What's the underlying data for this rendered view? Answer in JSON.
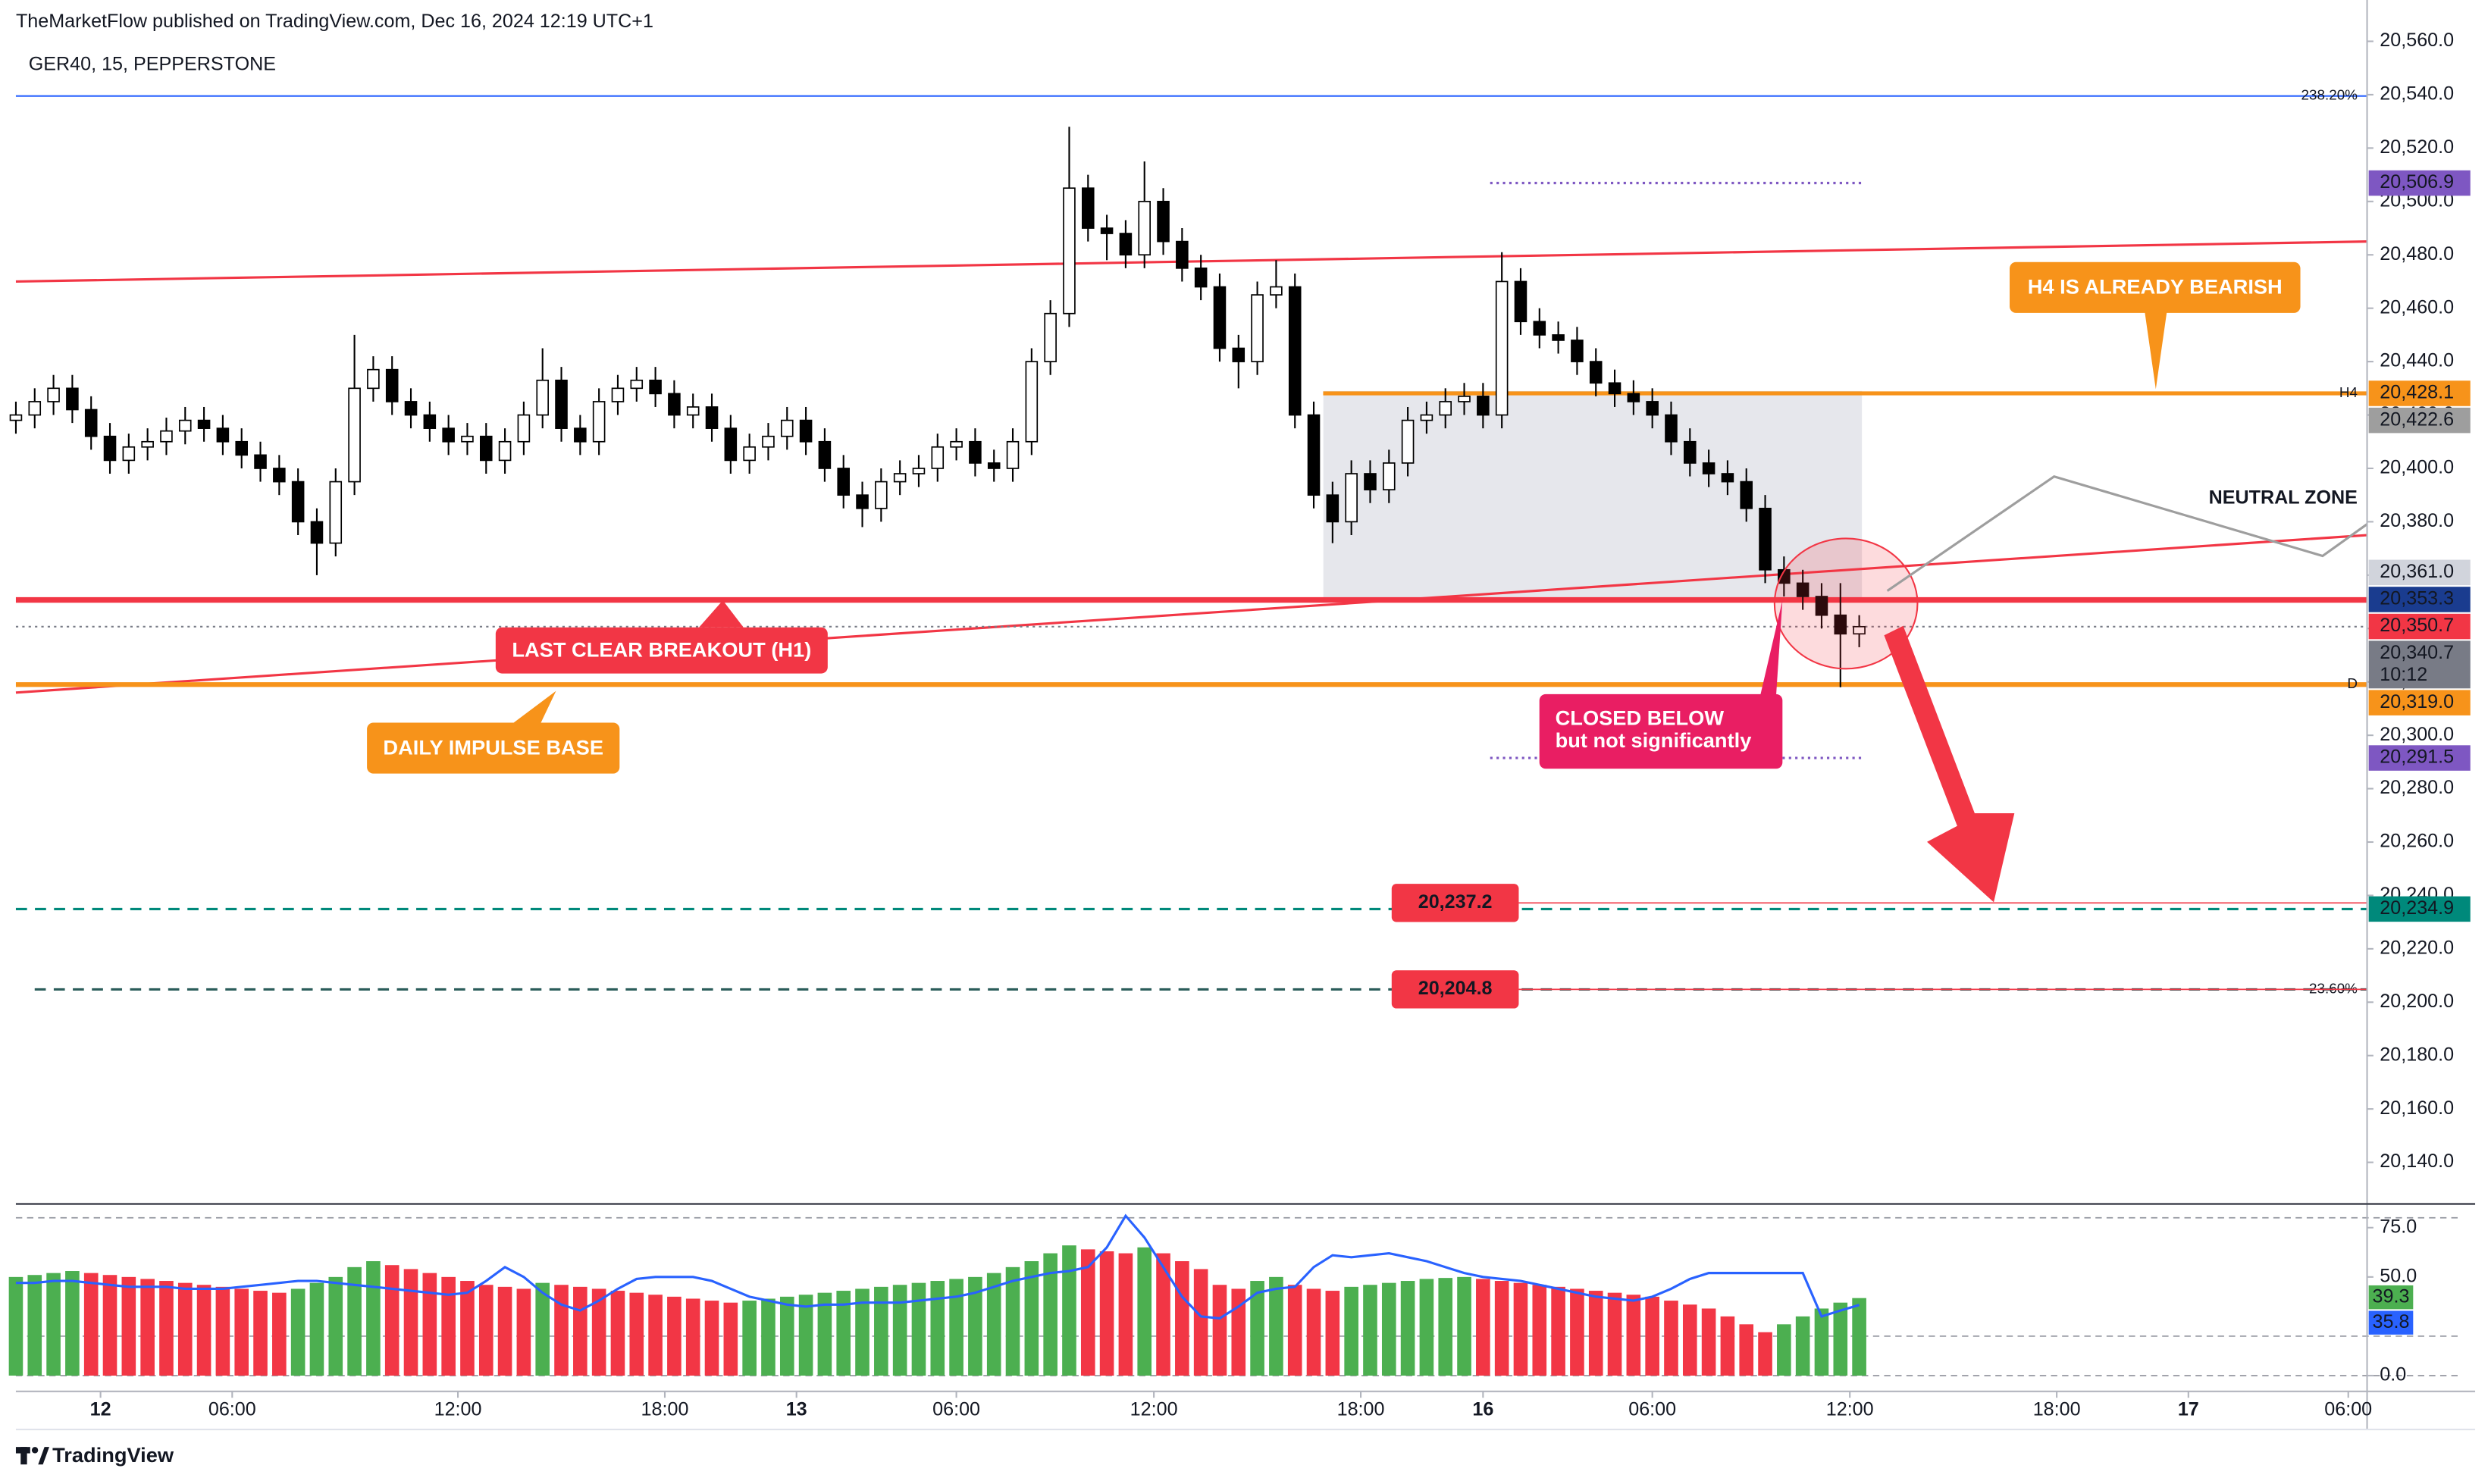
{
  "chart_data": {
    "type": "candlestick",
    "byline": "TheMarketFlow published on TradingView.com, Dec 16, 2024 12:19 UTC+1",
    "title": "GER40, 15, PEPPERSTONE",
    "brand": "TradingView",
    "up_color": "#ffffff",
    "down_color": "#000000",
    "xlim": [
      0,
      250
    ],
    "xticks": [
      {
        "value": 9,
        "label": "12"
      },
      {
        "value": 23,
        "label": "06:00"
      },
      {
        "value": 47,
        "label": "12:00"
      },
      {
        "value": 69,
        "label": "18:00"
      },
      {
        "value": 83,
        "label": "13"
      },
      {
        "value": 100,
        "label": "06:00"
      },
      {
        "value": 121,
        "label": "12:00"
      },
      {
        "value": 143,
        "label": "18:00"
      },
      {
        "value": 156,
        "label": "16"
      },
      {
        "value": 174,
        "label": "06:00"
      },
      {
        "value": 195,
        "label": "12:00"
      },
      {
        "value": 217,
        "label": "18:00"
      },
      {
        "value": 231,
        "label": "17"
      },
      {
        "value": 248,
        "label": "06:00"
      }
    ],
    "ylim": [
      20125,
      20560
    ],
    "yticks": [
      {
        "value": 20140,
        "label": "20,140.0"
      },
      {
        "value": 20160,
        "label": "20,160.0"
      },
      {
        "value": 20180,
        "label": "20,180.0"
      },
      {
        "value": 20200,
        "label": "20,200.0"
      },
      {
        "value": 20220,
        "label": "20,220.0"
      },
      {
        "value": 20240,
        "label": "20,240.0"
      },
      {
        "value": 20260,
        "label": "20,260.0"
      },
      {
        "value": 20280,
        "label": "20,280.0"
      },
      {
        "value": 20300,
        "label": "20,300.0"
      },
      {
        "value": 20320,
        "label": "20,320.0"
      },
      {
        "value": 20340,
        "label": "20,340.0"
      },
      {
        "value": 20360,
        "label": "20,360.0"
      },
      {
        "value": 20380,
        "label": "20,380.0"
      },
      {
        "value": 20400,
        "label": "20,400.0"
      },
      {
        "value": 20420,
        "label": "20,420.0"
      },
      {
        "value": 20440,
        "label": "20,440.0"
      },
      {
        "value": 20460,
        "label": "20,460.0"
      },
      {
        "value": 20480,
        "label": "20,480.0"
      },
      {
        "value": 20500,
        "label": "20,500.0"
      },
      {
        "value": 20520,
        "label": "20,520.0"
      },
      {
        "value": 20540,
        "label": "20,540.0"
      },
      {
        "value": 20560,
        "label": "20,560.0"
      }
    ],
    "x": [
      0,
      2,
      4,
      6,
      8,
      10,
      12,
      14,
      16,
      18,
      20,
      22,
      24,
      26,
      28,
      30,
      32,
      34,
      36,
      38,
      40,
      42,
      44,
      46,
      48,
      50,
      52,
      54,
      56,
      58,
      60,
      62,
      64,
      66,
      68,
      70,
      72,
      74,
      76,
      78,
      80,
      82,
      84,
      86,
      88,
      90,
      92,
      94,
      96,
      98,
      100,
      102,
      104,
      106,
      108,
      110,
      112,
      114,
      116,
      118,
      120,
      122,
      124,
      126,
      128,
      130,
      132,
      134,
      136,
      138,
      140,
      142,
      144,
      146,
      148,
      150,
      152,
      154,
      156,
      158,
      160,
      162,
      164,
      166,
      168,
      170,
      172,
      174,
      176,
      178,
      180,
      182,
      184,
      186,
      188,
      190,
      192,
      194,
      196
    ],
    "open": [
      20418,
      20420,
      20425,
      20430,
      20422,
      20412,
      20403,
      20408,
      20410,
      20414,
      20418,
      20415,
      20410,
      20405,
      20400,
      20395,
      20380,
      20372,
      20395,
      20430,
      20437,
      20425,
      20420,
      20415,
      20410,
      20412,
      20403,
      20410,
      20420,
      20433,
      20415,
      20410,
      20425,
      20430,
      20433,
      20428,
      20420,
      20423,
      20415,
      20403,
      20408,
      20412,
      20418,
      20410,
      20400,
      20390,
      20385,
      20395,
      20398,
      20400,
      20408,
      20410,
      20402,
      20400,
      20410,
      20440,
      20458,
      20505,
      20490,
      20488,
      20480,
      20500,
      20485,
      20475,
      20468,
      20445,
      20440,
      20465,
      20468,
      20420,
      20390,
      20380,
      20398,
      20392,
      20402,
      20418,
      20420,
      20425,
      20427,
      20420,
      20470,
      20455,
      20450,
      20448,
      20440,
      20432,
      20428,
      20425,
      20420,
      20410,
      20402,
      20398,
      20395,
      20385,
      20362,
      20357,
      20352,
      20345,
      20338
    ],
    "high": [
      20425,
      20430,
      20435,
      20435,
      20427,
      20417,
      20413,
      20415,
      20419,
      20423,
      20423,
      20420,
      20415,
      20410,
      20405,
      20400,
      20385,
      20400,
      20450,
      20442,
      20442,
      20430,
      20425,
      20420,
      20417,
      20417,
      20415,
      20425,
      20445,
      20438,
      20420,
      20430,
      20435,
      20438,
      20438,
      20433,
      20428,
      20428,
      20420,
      20413,
      20417,
      20423,
      20423,
      20415,
      20405,
      20395,
      20400,
      20403,
      20405,
      20413,
      20415,
      20415,
      20407,
      20415,
      20445,
      20463,
      20528,
      20510,
      20495,
      20493,
      20515,
      20505,
      20490,
      20480,
      20473,
      20450,
      20470,
      20478,
      20473,
      20425,
      20395,
      20403,
      20403,
      20407,
      20423,
      20425,
      20430,
      20432,
      20432,
      20481,
      20475,
      20460,
      20455,
      20453,
      20445,
      20437,
      20433,
      20430,
      20425,
      20415,
      20407,
      20403,
      20400,
      20390,
      20367,
      20362,
      20357,
      20357,
      20345
    ],
    "low": [
      20413,
      20415,
      20420,
      20417,
      20407,
      20398,
      20398,
      20403,
      20405,
      20409,
      20410,
      20405,
      20400,
      20395,
      20390,
      20375,
      20360,
      20367,
      20390,
      20425,
      20420,
      20415,
      20410,
      20405,
      20405,
      20398,
      20398,
      20405,
      20415,
      20410,
      20405,
      20405,
      20420,
      20425,
      20423,
      20415,
      20415,
      20410,
      20398,
      20398,
      20403,
      20407,
      20405,
      20395,
      20385,
      20378,
      20380,
      20390,
      20393,
      20395,
      20403,
      20397,
      20395,
      20395,
      20405,
      20435,
      20453,
      20485,
      20478,
      20475,
      20475,
      20480,
      20470,
      20463,
      20440,
      20430,
      20435,
      20460,
      20415,
      20385,
      20372,
      20375,
      20387,
      20387,
      20397,
      20413,
      20415,
      20420,
      20415,
      20415,
      20450,
      20445,
      20443,
      20435,
      20427,
      20423,
      20420,
      20415,
      20405,
      20397,
      20393,
      20390,
      20380,
      20357,
      20352,
      20347,
      20340,
      20318,
      20333
    ],
    "close": [
      20420,
      20425,
      20430,
      20422,
      20412,
      20403,
      20408,
      20410,
      20414,
      20418,
      20415,
      20410,
      20405,
      20400,
      20395,
      20380,
      20372,
      20395,
      20430,
      20437,
      20425,
      20420,
      20415,
      20410,
      20412,
      20403,
      20410,
      20420,
      20433,
      20415,
      20410,
      20425,
      20430,
      20433,
      20428,
      20420,
      20423,
      20415,
      20403,
      20408,
      20412,
      20418,
      20410,
      20400,
      20390,
      20385,
      20395,
      20398,
      20400,
      20408,
      20410,
      20402,
      20400,
      20410,
      20440,
      20458,
      20505,
      20490,
      20488,
      20480,
      20500,
      20485,
      20475,
      20468,
      20445,
      20440,
      20465,
      20468,
      20420,
      20390,
      20380,
      20398,
      20392,
      20402,
      20418,
      20420,
      20425,
      20427,
      20420,
      20470,
      20455,
      20450,
      20448,
      20440,
      20432,
      20428,
      20425,
      20420,
      20410,
      20402,
      20398,
      20395,
      20385,
      20362,
      20357,
      20352,
      20345,
      20338,
      20340.7
    ],
    "zone": {
      "name": "NEUTRAL ZONE",
      "top": 20429,
      "bottom": 20350.7,
      "color": "#d1d4dc"
    },
    "trendlines": [
      {
        "start": 20470,
        "end": 20485,
        "color": "#f23645"
      },
      {
        "start": 20316,
        "end": 20375,
        "color": "#f23645"
      }
    ],
    "levels": [
      {
        "name": "238.20%",
        "price": 20539.5,
        "color": "#2962ff",
        "style": "solid",
        "width": 1,
        "from": 0
      },
      {
        "name": "H4",
        "price": 20428.1,
        "label": "20,428.1",
        "color": "#f7931a",
        "style": "solid",
        "width": 2.5,
        "from": 139
      },
      {
        "price": 20350.7,
        "label": "20,350.7",
        "color": "#f23645",
        "style": "solid",
        "width": 3.5,
        "from": 0
      },
      {
        "name": "D",
        "price": 20319.0,
        "label": "20,319.0",
        "color": "#f7931a",
        "style": "solid",
        "width": 3,
        "from": 0
      },
      {
        "price": 20340.7,
        "label": "20,340.7",
        "countdown": "10:12",
        "color": "#787b86",
        "style": "dotted",
        "width": 1,
        "from": 0
      },
      {
        "price": 20234.9,
        "label": "20,234.9",
        "color": "#00897b",
        "style": "dashed",
        "width": 1.5,
        "from": 0
      },
      {
        "name": "23.60%",
        "price": 20204.8,
        "color": "#2a5c5a",
        "style": "dashed",
        "width": 1.5,
        "from": 2
      }
    ],
    "price_tags": [
      {
        "price": 20506.9,
        "label": "20,506.9",
        "color": "#7e57c2",
        "style": "dotted"
      },
      {
        "price": 20422.6,
        "label": "20,422.6",
        "color": "#9e9e9e"
      },
      {
        "price": 20361.0,
        "label": "20,361.0",
        "color": "#d1d4dc",
        "text_color": "#131722"
      },
      {
        "price": 20353.3,
        "label": "20,353.3",
        "color": "#1a3c8f"
      },
      {
        "price": 20291.5,
        "label": "20,291.5",
        "color": "#7e57c2",
        "style": "dotted"
      }
    ],
    "targets": [
      {
        "price": 20237.2,
        "label": "20,237.2",
        "color": "#f23645"
      },
      {
        "price": 20204.8,
        "label": "20,204.8",
        "color": "#f23645"
      }
    ],
    "annotations": [
      {
        "lines": [
          "LAST CLEAR BREAKOUT (H1)"
        ],
        "color": "#f23645"
      },
      {
        "lines": [
          "DAILY IMPULSE BASE"
        ],
        "color": "#f7931a"
      },
      {
        "lines": [
          "H4 IS ALREADY BEARISH"
        ],
        "color": "#f7931a"
      },
      {
        "lines": [
          "CLOSED BELOW",
          "but not significantly"
        ],
        "color": "#e91e63"
      }
    ],
    "osc": {
      "ylim": [
        -8,
        87
      ],
      "yticks": [
        {
          "value": 0,
          "label": "0.0"
        },
        {
          "value": 50,
          "label": "50.0"
        },
        {
          "value": 75,
          "label": "75.0"
        }
      ],
      "bands": [
        80,
        20,
        0
      ],
      "up_color": "#4caf50",
      "down_color": "#f23645",
      "line_color": "#2962ff",
      "hist": [
        50,
        51,
        52,
        53,
        52,
        51,
        50,
        49,
        48,
        47,
        46,
        45,
        44,
        43,
        42,
        44,
        47,
        50,
        55,
        58,
        56,
        54,
        52,
        50,
        48,
        46,
        45,
        44,
        47,
        46,
        45,
        44,
        43,
        42,
        41,
        40,
        39,
        38,
        37,
        38,
        39,
        40,
        41,
        42,
        43,
        44,
        45,
        46,
        47,
        48,
        49,
        50,
        52,
        55,
        58,
        62,
        66,
        64,
        63,
        62,
        65,
        62,
        58,
        54,
        46,
        44,
        48,
        50,
        46,
        44,
        43,
        45,
        46,
        47,
        48,
        49,
        49.5,
        50,
        49,
        48,
        47,
        46,
        45,
        44,
        43,
        42,
        41,
        40,
        38,
        36,
        34,
        30,
        26,
        22,
        26,
        30,
        34,
        37,
        39.3
      ],
      "line": [
        47,
        47,
        48,
        48,
        47,
        46,
        45,
        45,
        45,
        44,
        44,
        44,
        45,
        46,
        47,
        48,
        48,
        47,
        46,
        45,
        44,
        43,
        42,
        41,
        42,
        48,
        55,
        50,
        42,
        36,
        33,
        38,
        44,
        49,
        50,
        50,
        50,
        48,
        44,
        40,
        38,
        36,
        35,
        36,
        36,
        37,
        37,
        37,
        38,
        39,
        40,
        42,
        45,
        48,
        50,
        52,
        53,
        55,
        65,
        81,
        70,
        55,
        40,
        30,
        29,
        35,
        42,
        44,
        45,
        55,
        61,
        60,
        61,
        62,
        60,
        58,
        55,
        52,
        50,
        49,
        48,
        46,
        44,
        42,
        40,
        39,
        38,
        40,
        44,
        49,
        52,
        52,
        52,
        52,
        52,
        52,
        30,
        33,
        35.8
      ]
    }
  }
}
